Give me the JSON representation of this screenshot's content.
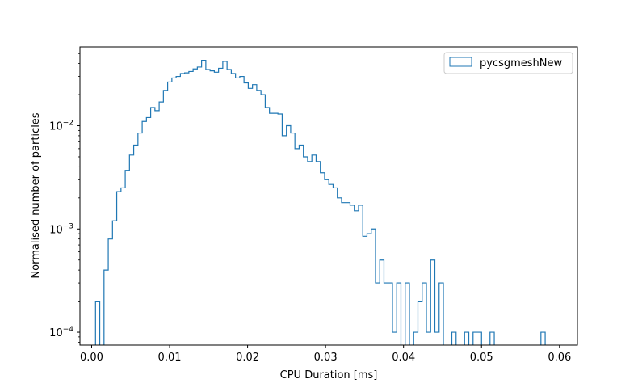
{
  "chart_data": {
    "type": "histogram",
    "title": "",
    "xlabel": "CPU Duration [ms]",
    "ylabel": "Normalised number of particles",
    "xlim": [
      -0.0015,
      0.0623
    ],
    "ylim": [
      7.5e-05,
      0.058
    ],
    "yscale": "log",
    "grid": false,
    "legend": {
      "placement": "top-right"
    },
    "x_ticks": [
      {
        "value": 0.0,
        "label": "0.00"
      },
      {
        "value": 0.01,
        "label": "0.01"
      },
      {
        "value": 0.02,
        "label": "0.02"
      },
      {
        "value": 0.03,
        "label": "0.03"
      },
      {
        "value": 0.04,
        "label": "0.04"
      },
      {
        "value": 0.05,
        "label": "0.05"
      },
      {
        "value": 0.06,
        "label": "0.06"
      }
    ],
    "y_ticks": [
      {
        "value": 0.0001,
        "base": "10",
        "exp": "−4"
      },
      {
        "value": 0.001,
        "base": "10",
        "exp": "−3"
      },
      {
        "value": 0.01,
        "base": "10",
        "exp": "−2"
      }
    ],
    "series": [
      {
        "name": "pycsgmeshNew",
        "color": "#1f77b4",
        "bin_start": 0.0005,
        "bin_width": 0.000544,
        "values": [
          0.0002,
          0,
          0.0004,
          0.0008,
          0.0012,
          0.0023,
          0.0025,
          0.0037,
          0.0052,
          0.0065,
          0.0085,
          0.011,
          0.012,
          0.015,
          0.014,
          0.017,
          0.022,
          0.0265,
          0.029,
          0.03,
          0.032,
          0.0325,
          0.0335,
          0.0355,
          0.037,
          0.043,
          0.035,
          0.034,
          0.033,
          0.036,
          0.042,
          0.035,
          0.032,
          0.029,
          0.03,
          0.026,
          0.023,
          0.025,
          0.022,
          0.02,
          0.015,
          0.0132,
          0.0132,
          0.013,
          0.008,
          0.01,
          0.0085,
          0.006,
          0.0065,
          0.005,
          0.0045,
          0.0052,
          0.0045,
          0.0035,
          0.003,
          0.0027,
          0.0025,
          0.002,
          0.0018,
          0.0018,
          0.0017,
          0.0015,
          0.0017,
          0.00085,
          0.0009,
          0.001,
          0.0003,
          0.0005,
          0.0003,
          0.0003,
          0.0001,
          0.0003,
          0,
          0.0003,
          0,
          0.0001,
          0.0002,
          0.0003,
          0.0001,
          0.0005,
          0.0001,
          0.0003,
          0,
          0,
          0.0001,
          0,
          0,
          0.0001,
          0,
          0.0001,
          0.0001,
          0,
          0,
          0.0001,
          0,
          0,
          0,
          0,
          0,
          0,
          0,
          0,
          0,
          0,
          0,
          0.0001
        ]
      }
    ]
  }
}
